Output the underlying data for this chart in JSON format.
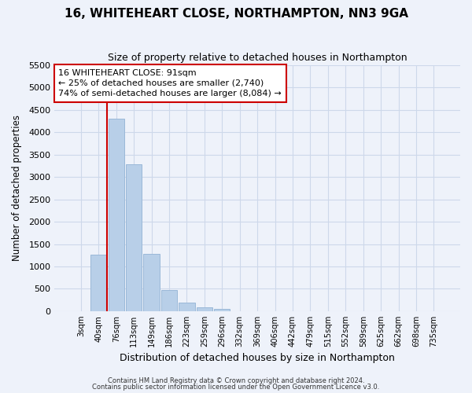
{
  "title": "16, WHITEHEART CLOSE, NORTHAMPTON, NN3 9GA",
  "subtitle": "Size of property relative to detached houses in Northampton",
  "xlabel": "Distribution of detached houses by size in Northampton",
  "ylabel": "Number of detached properties",
  "bar_labels": [
    "3sqm",
    "40sqm",
    "76sqm",
    "113sqm",
    "149sqm",
    "186sqm",
    "223sqm",
    "259sqm",
    "296sqm",
    "332sqm",
    "369sqm",
    "406sqm",
    "442sqm",
    "479sqm",
    "515sqm",
    "552sqm",
    "589sqm",
    "625sqm",
    "662sqm",
    "698sqm",
    "735sqm"
  ],
  "bar_values": [
    0,
    1270,
    4300,
    3280,
    1280,
    480,
    200,
    90,
    60,
    0,
    0,
    0,
    0,
    0,
    0,
    0,
    0,
    0,
    0,
    0,
    0
  ],
  "bar_color": "#b8cfe8",
  "bar_edge_color": "#9ab8d8",
  "vline_x": 2,
  "vline_color": "#cc0000",
  "ylim": [
    0,
    5500
  ],
  "yticks": [
    0,
    500,
    1000,
    1500,
    2000,
    2500,
    3000,
    3500,
    4000,
    4500,
    5000,
    5500
  ],
  "annotation_title": "16 WHITEHEART CLOSE: 91sqm",
  "annotation_line1": "← 25% of detached houses are smaller (2,740)",
  "annotation_line2": "74% of semi-detached houses are larger (8,084) →",
  "footer1": "Contains HM Land Registry data © Crown copyright and database right 2024.",
  "footer2": "Contains public sector information licensed under the Open Government Licence v3.0.",
  "grid_color": "#cdd8ea",
  "background_color": "#eef2fa"
}
